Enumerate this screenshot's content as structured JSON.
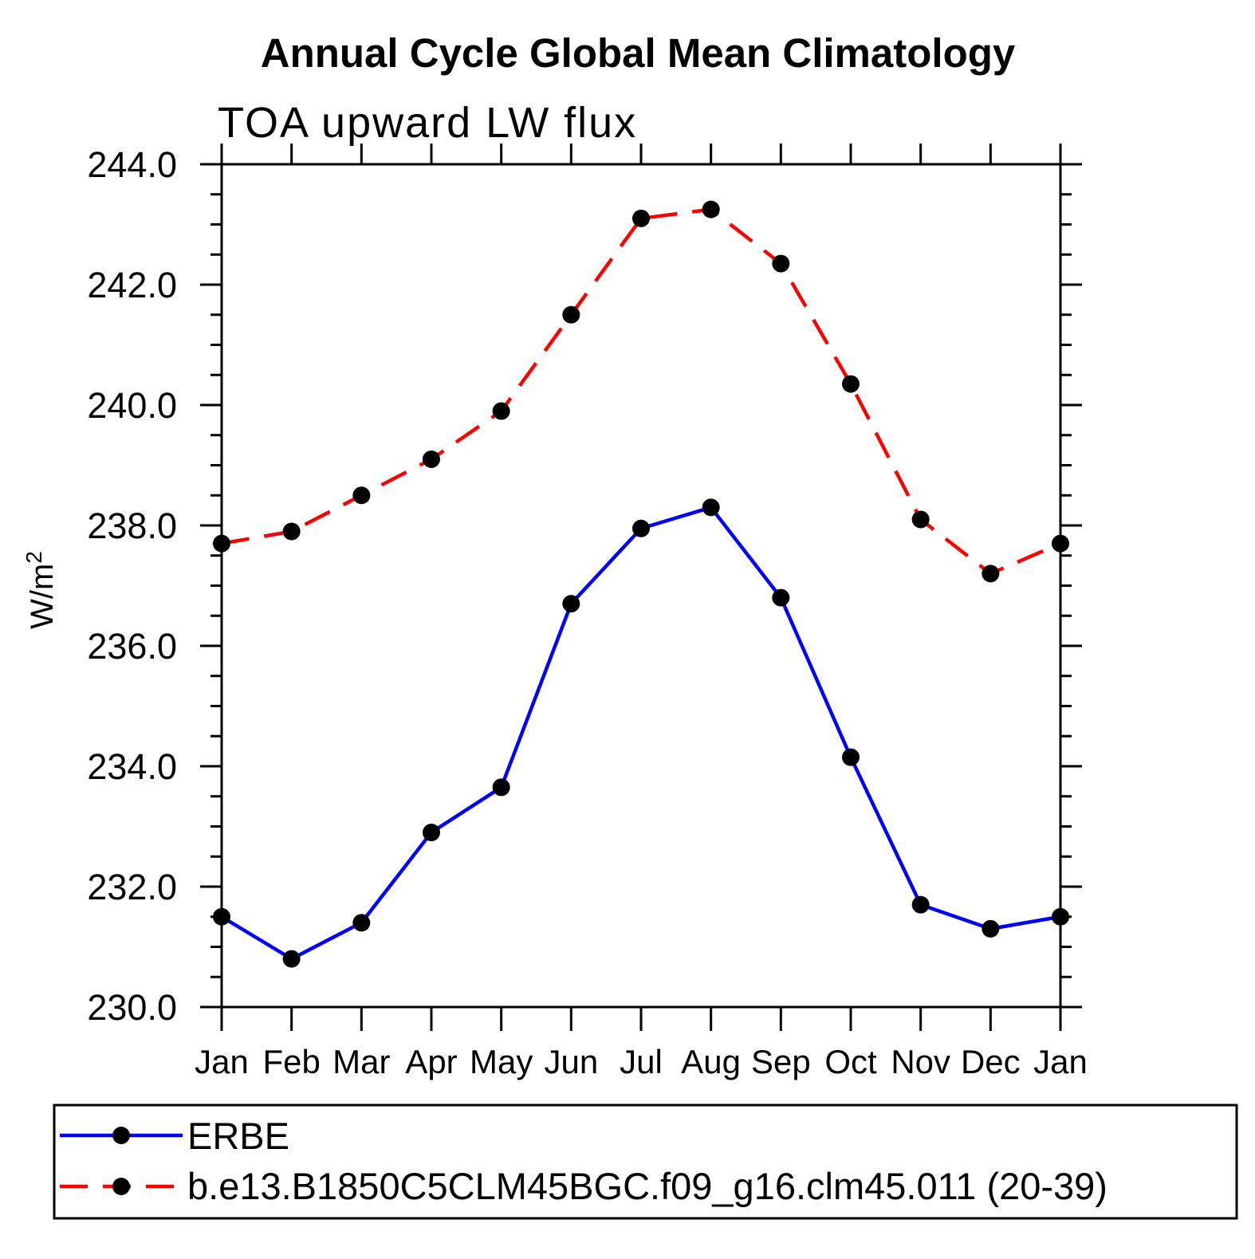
{
  "chart_data": {
    "type": "line",
    "title": "Annual Cycle Global Mean Climatology",
    "subtitle": "TOA upward LW flux",
    "ylabel_base": "W/m",
    "ylabel_exponent": "2",
    "categories": [
      "Jan",
      "Feb",
      "Mar",
      "Apr",
      "May",
      "Jun",
      "Jul",
      "Aug",
      "Sep",
      "Oct",
      "Nov",
      "Dec",
      "Jan"
    ],
    "ylim": [
      230.0,
      244.0
    ],
    "ytick_major_interval": 2.0,
    "ytick_minor_interval": 0.5,
    "ytick_labels": [
      "230.0",
      "232.0",
      "234.0",
      "236.0",
      "238.0",
      "240.0",
      "242.0",
      "244.0"
    ],
    "grid": false,
    "axis_color": "#000000",
    "marker": "filled-circle",
    "marker_color": "#000000",
    "legend_position": "bottom-left-box",
    "series": [
      {
        "name": "ERBE",
        "color": "#0000ff",
        "line_style": "solid",
        "values": [
          231.5,
          230.8,
          231.4,
          232.9,
          233.65,
          236.7,
          237.95,
          238.3,
          236.8,
          234.15,
          231.7,
          231.3,
          231.5
        ]
      },
      {
        "name": "b.e13.B1850C5CLM45BGC.f09_g16.clm45.011 (20-39)",
        "color": "#ff0000",
        "line_style": "dashed",
        "values": [
          237.7,
          237.9,
          238.5,
          239.1,
          239.9,
          241.5,
          243.1,
          243.25,
          242.35,
          240.35,
          238.1,
          237.2,
          237.7
        ]
      }
    ]
  }
}
